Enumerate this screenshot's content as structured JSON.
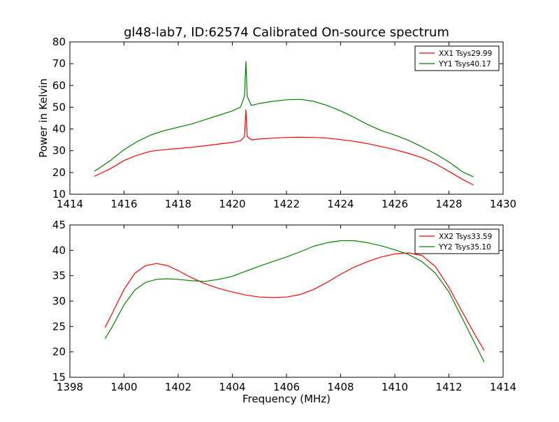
{
  "chart_data": [
    {
      "type": "line",
      "title": "gl48-lab7, ID:62574 Calibrated On-source spectrum",
      "xlabel": "",
      "ylabel": "Power in Kelvin",
      "xlim": [
        1414,
        1430
      ],
      "ylim": [
        10,
        80
      ],
      "xticks": [
        1414,
        1416,
        1418,
        1420,
        1422,
        1424,
        1426,
        1428,
        1430
      ],
      "yticks": [
        10,
        20,
        30,
        40,
        50,
        60,
        70,
        80
      ],
      "legend_position": "top-right",
      "series": [
        {
          "name": "XX1 Tsys29.99",
          "color": "#ff0000",
          "x": [
            1414.9,
            1415.5,
            1416.0,
            1416.5,
            1417.0,
            1417.5,
            1418.0,
            1418.5,
            1419.0,
            1419.5,
            1420.0,
            1420.3,
            1420.45,
            1420.5,
            1420.55,
            1420.7,
            1421.0,
            1421.5,
            1422.0,
            1422.5,
            1423.0,
            1423.5,
            1424.0,
            1424.5,
            1425.0,
            1425.5,
            1426.0,
            1426.5,
            1427.0,
            1427.5,
            1428.0,
            1428.5,
            1428.9
          ],
          "y": [
            18.2,
            21.8,
            25.5,
            28.0,
            29.8,
            30.5,
            31.0,
            31.6,
            32.3,
            33.1,
            33.8,
            34.6,
            36.5,
            48.8,
            36.5,
            35.0,
            35.4,
            35.8,
            36.1,
            36.2,
            36.1,
            35.8,
            35.1,
            34.3,
            33.2,
            31.9,
            30.5,
            28.8,
            26.8,
            24.0,
            20.5,
            16.8,
            14.3
          ]
        },
        {
          "name": "YY1 Tsys40.17",
          "color": "#008000",
          "x": [
            1414.9,
            1415.5,
            1416.0,
            1416.5,
            1417.0,
            1417.5,
            1418.0,
            1418.5,
            1419.0,
            1419.5,
            1420.0,
            1420.3,
            1420.45,
            1420.5,
            1420.55,
            1420.7,
            1421.0,
            1421.5,
            1422.0,
            1422.5,
            1423.0,
            1423.5,
            1424.0,
            1424.5,
            1425.0,
            1425.5,
            1426.0,
            1426.5,
            1427.0,
            1427.5,
            1428.0,
            1428.5,
            1428.9
          ],
          "y": [
            20.5,
            25.5,
            30.5,
            34.3,
            37.3,
            39.3,
            40.8,
            42.3,
            44.3,
            46.3,
            48.3,
            50.0,
            55.0,
            71.0,
            55.0,
            50.8,
            51.7,
            52.7,
            53.4,
            53.6,
            52.7,
            50.8,
            48.3,
            45.3,
            42.0,
            39.3,
            37.2,
            34.8,
            31.8,
            28.6,
            24.8,
            20.3,
            18.0
          ]
        }
      ]
    },
    {
      "type": "line",
      "title": "",
      "xlabel": "Frequency (MHz)",
      "ylabel": "",
      "xlim": [
        1398,
        1414
      ],
      "ylim": [
        15,
        45
      ],
      "xticks": [
        1398,
        1400,
        1402,
        1404,
        1406,
        1408,
        1410,
        1412,
        1414
      ],
      "yticks": [
        15,
        20,
        25,
        30,
        35,
        40,
        45
      ],
      "legend_position": "top-right",
      "series": [
        {
          "name": "XX2 Tsys33.59",
          "color": "#ff0000",
          "x": [
            1399.3,
            1399.6,
            1400.0,
            1400.4,
            1400.8,
            1401.2,
            1401.6,
            1402.0,
            1402.5,
            1403.0,
            1403.5,
            1404.0,
            1404.5,
            1405.0,
            1405.5,
            1406.0,
            1406.5,
            1407.0,
            1407.5,
            1408.0,
            1408.5,
            1409.0,
            1409.5,
            1410.0,
            1410.5,
            1411.0,
            1411.5,
            1412.0,
            1412.5,
            1413.0,
            1413.3
          ],
          "y": [
            24.8,
            28.0,
            32.3,
            35.5,
            37.0,
            37.4,
            37.0,
            36.0,
            34.6,
            33.4,
            32.5,
            31.8,
            31.2,
            30.8,
            30.7,
            30.8,
            31.3,
            32.3,
            33.7,
            35.3,
            36.7,
            37.8,
            38.7,
            39.3,
            39.5,
            39.0,
            36.8,
            32.7,
            27.8,
            23.0,
            20.3
          ]
        },
        {
          "name": "YY2 Tsys35.10",
          "color": "#008000",
          "x": [
            1399.3,
            1399.6,
            1400.0,
            1400.4,
            1400.8,
            1401.2,
            1401.6,
            1402.0,
            1402.5,
            1403.0,
            1403.5,
            1404.0,
            1404.5,
            1405.0,
            1405.5,
            1406.0,
            1406.5,
            1407.0,
            1407.5,
            1408.0,
            1408.5,
            1409.0,
            1409.5,
            1410.0,
            1410.5,
            1411.0,
            1411.5,
            1412.0,
            1412.5,
            1413.0,
            1413.3
          ],
          "y": [
            22.6,
            25.3,
            29.3,
            32.2,
            33.7,
            34.3,
            34.4,
            34.3,
            34.0,
            33.9,
            34.3,
            34.9,
            35.9,
            36.9,
            37.8,
            38.7,
            39.7,
            40.8,
            41.5,
            41.9,
            41.9,
            41.5,
            40.9,
            40.1,
            39.2,
            37.8,
            35.5,
            31.8,
            26.5,
            21.2,
            18.0
          ]
        }
      ]
    }
  ]
}
